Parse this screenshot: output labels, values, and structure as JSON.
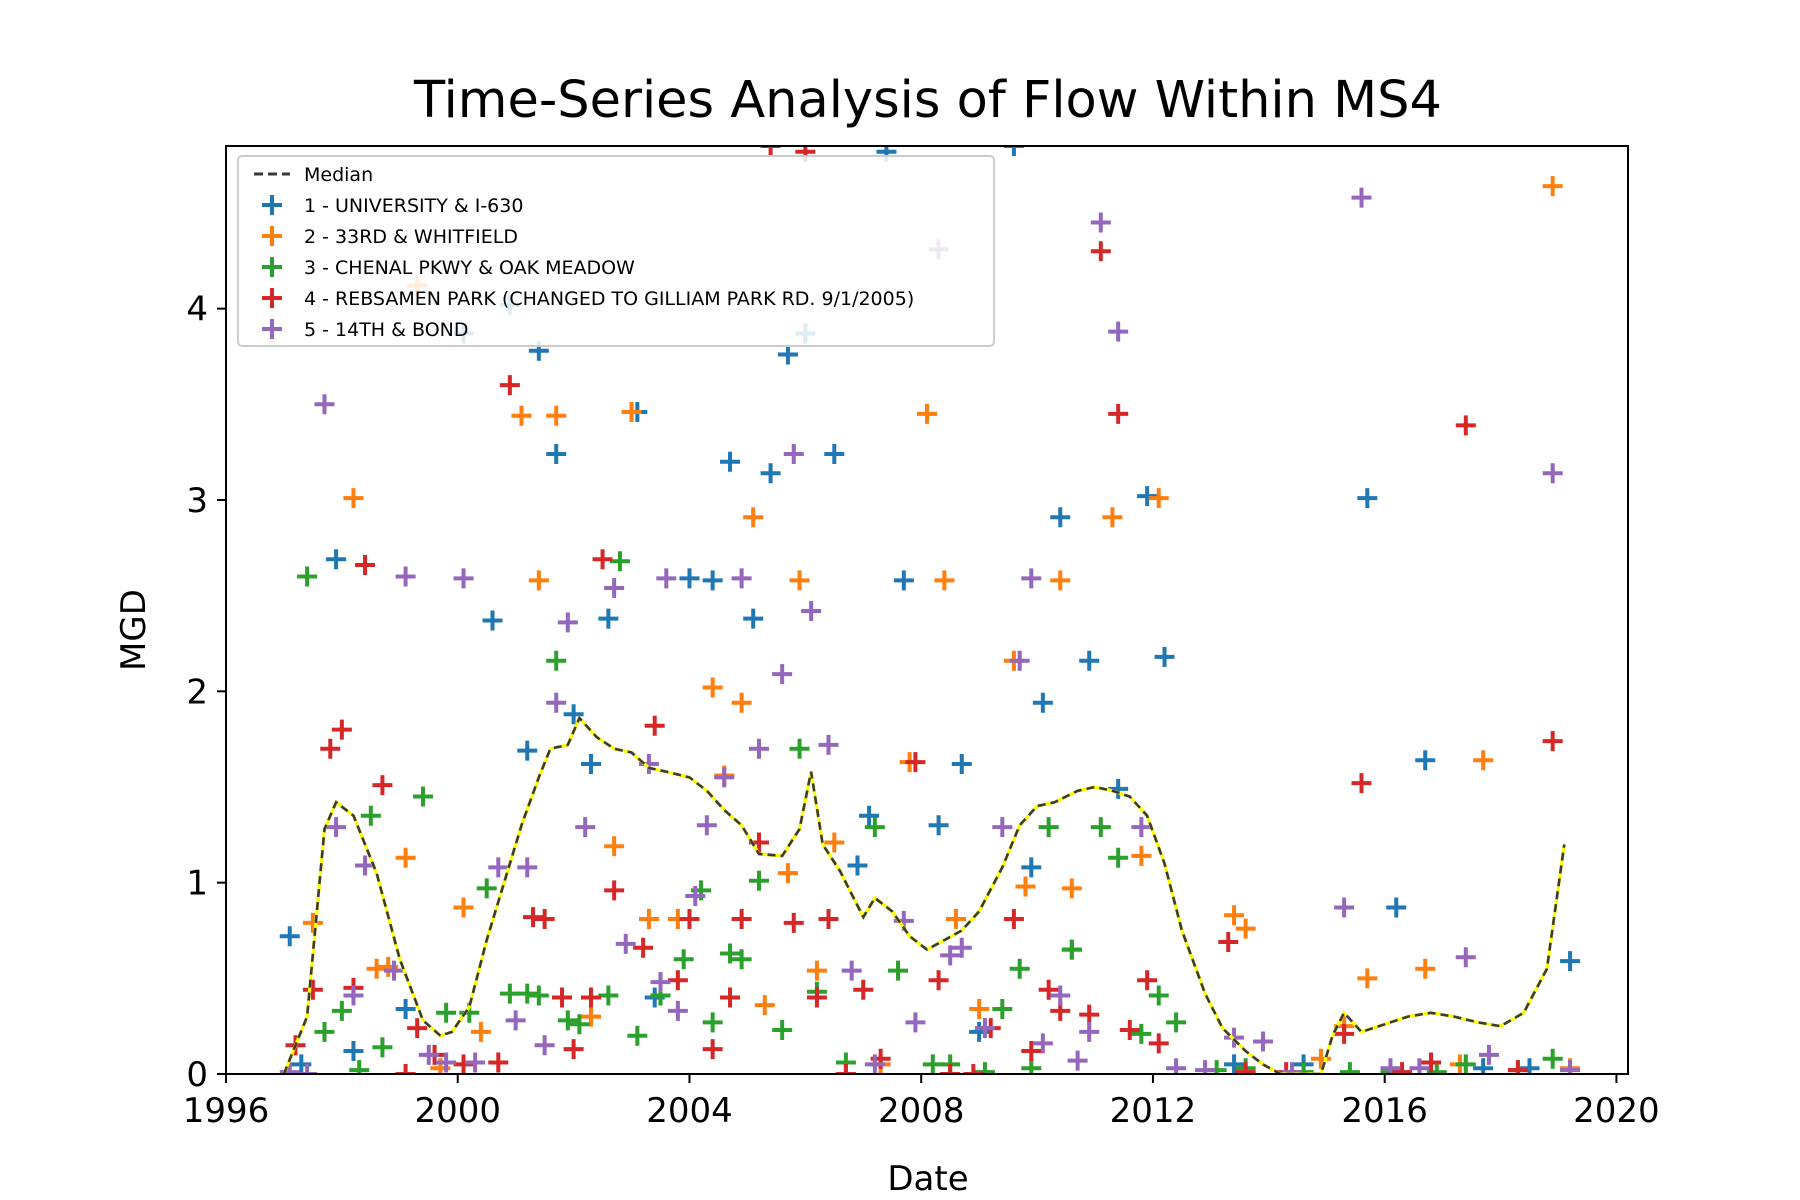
{
  "chart_data": {
    "type": "scatter",
    "title": "Time-Series Analysis of Flow Within MS4",
    "xlabel": "Date",
    "ylabel": "MGD",
    "xlim": [
      1996,
      2020.2
    ],
    "ylim": [
      0,
      4.85
    ],
    "xticks": [
      1996,
      2000,
      2004,
      2008,
      2012,
      2016,
      2020
    ],
    "yticks": [
      0,
      1,
      2,
      3,
      4
    ],
    "grid": false,
    "legend": "top-left",
    "median": {
      "name": "Median",
      "colors": [
        "#3a3a3a",
        "#ffff00"
      ],
      "x": [
        1997.0,
        1997.4,
        1997.7,
        1997.9,
        1998.2,
        1998.6,
        1999.0,
        1999.4,
        1999.7,
        1999.9,
        2000.2,
        2000.5,
        2000.8,
        2001.1,
        2001.4,
        2001.6,
        2001.9,
        2002.1,
        2002.4,
        2002.7,
        2003.0,
        2003.3,
        2003.6,
        2004.0,
        2004.3,
        2004.6,
        2004.9,
        2005.2,
        2005.6,
        2005.9,
        2006.1,
        2006.3,
        2006.6,
        2007.0,
        2007.2,
        2007.5,
        2007.8,
        2008.1,
        2008.4,
        2008.7,
        2009.0,
        2009.4,
        2009.7,
        2010.0,
        2010.3,
        2010.7,
        2011.0,
        2011.3,
        2011.6,
        2011.9,
        2012.2,
        2012.5,
        2012.9,
        2013.2,
        2013.6,
        2013.9,
        2014.2,
        2014.6,
        2014.9,
        2015.1,
        2015.3,
        2015.6,
        2016.0,
        2016.4,
        2016.8,
        2017.2,
        2017.6,
        2018.0,
        2018.4,
        2018.8,
        2019.1
      ],
      "y": [
        0,
        0.3,
        1.28,
        1.42,
        1.35,
        1.05,
        0.6,
        0.28,
        0.2,
        0.22,
        0.35,
        0.7,
        1.0,
        1.3,
        1.55,
        1.7,
        1.72,
        1.86,
        1.76,
        1.7,
        1.68,
        1.6,
        1.58,
        1.55,
        1.48,
        1.38,
        1.3,
        1.15,
        1.14,
        1.28,
        1.58,
        1.2,
        1.06,
        0.82,
        0.92,
        0.85,
        0.72,
        0.65,
        0.7,
        0.75,
        0.85,
        1.08,
        1.3,
        1.4,
        1.42,
        1.48,
        1.5,
        1.48,
        1.45,
        1.35,
        1.1,
        0.75,
        0.42,
        0.24,
        0.12,
        0.05,
        0,
        0,
        0,
        0.2,
        0.32,
        0.22,
        0.26,
        0.3,
        0.32,
        0.3,
        0.27,
        0.25,
        0.32,
        0.55,
        1.2
      ]
    },
    "series": [
      {
        "name": "1 - UNIVERSITY & I-630",
        "color": "#1f77b4",
        "x": [
          1997.1,
          1997.3,
          1997.9,
          1998.2,
          1999.1,
          2000.1,
          2000.6,
          2000.9,
          2001.2,
          2001.4,
          2001.7,
          2002.0,
          2002.3,
          2002.6,
          2003.1,
          2003.4,
          2004.0,
          2004.4,
          2004.7,
          2005.1,
          2005.4,
          2005.7,
          2006.0,
          2006.5,
          2006.9,
          2007.1,
          2007.4,
          2007.7,
          2008.3,
          2008.7,
          2009.0,
          2009.6,
          2009.9,
          2010.1,
          2010.4,
          2010.6,
          2010.9,
          2011.4,
          2011.9,
          2012.2,
          2013.4,
          2014.6,
          2015.7,
          2016.2,
          2016.7,
          2017.7,
          2018.5,
          2019.2
        ],
        "y": [
          0.72,
          0.05,
          2.69,
          0.12,
          0.34,
          3.87,
          2.37,
          4.02,
          1.69,
          3.78,
          3.24,
          1.88,
          1.62,
          2.38,
          3.46,
          0.4,
          2.59,
          2.58,
          3.2,
          2.38,
          3.14,
          3.76,
          3.87,
          3.24,
          1.09,
          1.35,
          4.82,
          2.58,
          1.3,
          1.62,
          0.22,
          4.85,
          1.08,
          1.94,
          2.91,
          0.65,
          2.16,
          1.49,
          3.02,
          2.18,
          0.05,
          0.05,
          3.01,
          0.87,
          1.64,
          0.03,
          0.03,
          0.59
        ]
      },
      {
        "name": "2 - 33RD & WHITFIELD",
        "color": "#ff7f0e",
        "x": [
          1997.5,
          1998.2,
          1998.6,
          1998.8,
          1999.1,
          1999.3,
          1999.7,
          2000.1,
          2000.4,
          2001.1,
          2001.4,
          2001.7,
          2002.3,
          2002.7,
          2003.0,
          2003.3,
          2003.8,
          2004.4,
          2004.6,
          2004.9,
          2005.1,
          2005.3,
          2005.7,
          2005.9,
          2006.2,
          2006.5,
          2007.3,
          2007.8,
          2008.1,
          2008.4,
          2008.6,
          2009.0,
          2009.6,
          2009.8,
          2010.4,
          2010.6,
          2011.3,
          2011.8,
          2012.1,
          2013.4,
          2013.6,
          2014.9,
          2015.3,
          2015.7,
          2016.7,
          2017.3,
          2017.7,
          2018.9,
          2019.2
        ],
        "y": [
          0.79,
          3.01,
          0.55,
          0.56,
          1.13,
          4.12,
          0.03,
          0.87,
          0.22,
          3.44,
          2.58,
          3.44,
          0.3,
          1.19,
          3.46,
          0.81,
          0.81,
          2.02,
          1.56,
          1.94,
          2.91,
          0.36,
          1.05,
          2.58,
          0.54,
          1.21,
          0.05,
          1.63,
          3.45,
          2.58,
          0.81,
          0.34,
          2.16,
          0.98,
          2.58,
          0.97,
          2.91,
          1.14,
          3.01,
          0.83,
          0.76,
          0.08,
          0.25,
          0.5,
          0.55,
          0.05,
          1.64,
          4.64,
          0.03
        ]
      },
      {
        "name": "3 - CHENAL PKWY & OAK MEADOW",
        "color": "#2ca02c",
        "x": [
          1997.4,
          1997.7,
          1998.0,
          1998.3,
          1998.5,
          1998.7,
          1999.4,
          1999.8,
          2000.2,
          2000.5,
          2000.9,
          2001.2,
          2001.4,
          2001.7,
          2001.9,
          2002.1,
          2002.6,
          2002.8,
          2003.1,
          2003.5,
          2003.9,
          2004.2,
          2004.4,
          2004.7,
          2004.9,
          2005.2,
          2005.6,
          2005.9,
          2006.2,
          2006.7,
          2007.2,
          2007.6,
          2008.2,
          2008.5,
          2009.1,
          2009.4,
          2009.7,
          2009.9,
          2010.2,
          2010.6,
          2011.1,
          2011.4,
          2011.8,
          2012.1,
          2012.4,
          2013.1,
          2013.6,
          2014.6,
          2015.4,
          2016.1,
          2016.9,
          2017.4,
          2018.3,
          2018.9
        ],
        "y": [
          2.6,
          0.22,
          0.33,
          0.02,
          1.35,
          0.14,
          1.45,
          0.32,
          0.32,
          0.97,
          0.42,
          0.42,
          0.41,
          2.16,
          0.28,
          0.26,
          0.41,
          2.68,
          0.2,
          0.41,
          0.6,
          0.96,
          0.27,
          0.63,
          0.6,
          1.01,
          0.23,
          1.7,
          0.43,
          0.06,
          1.29,
          0.54,
          0.05,
          0.05,
          0.01,
          0.34,
          0.55,
          0.03,
          1.29,
          0.65,
          1.29,
          1.13,
          0.21,
          0.41,
          0.27,
          0.02,
          0.03,
          0.01,
          0.01,
          0.01,
          0.01,
          0.05,
          0.02,
          0.08
        ]
      },
      {
        "name": "4 - REBSAMEN PARK (CHANGED TO GILLIAM PARK RD. 9/1/2005)",
        "color": "#d62728",
        "x": [
          1997.2,
          1997.5,
          1997.8,
          1998.0,
          1998.2,
          1998.4,
          1998.7,
          1999.1,
          1999.3,
          1999.6,
          2000.1,
          2000.7,
          2000.9,
          2001.3,
          2001.5,
          2001.8,
          2002.0,
          2002.3,
          2002.5,
          2002.7,
          2003.2,
          2003.4,
          2003.8,
          2004.0,
          2004.4,
          2004.7,
          2004.9,
          2005.2,
          2005.4,
          2005.8,
          2006.0,
          2006.2,
          2006.4,
          2006.7,
          2007.0,
          2007.3,
          2007.9,
          2008.3,
          2008.5,
          2008.9,
          2009.2,
          2009.6,
          2009.9,
          2010.2,
          2010.4,
          2010.9,
          2011.1,
          2011.4,
          2011.6,
          2011.9,
          2012.1,
          2013.3,
          2013.6,
          2014.3,
          2015.3,
          2015.6,
          2016.3,
          2016.8,
          2017.4,
          2018.3,
          2018.9
        ],
        "y": [
          0.15,
          0.44,
          1.7,
          1.8,
          0.45,
          2.66,
          1.51,
          0.0,
          0.24,
          0.1,
          0.05,
          0.06,
          3.6,
          0.82,
          0.81,
          0.4,
          0.13,
          0.4,
          2.69,
          0.96,
          0.66,
          1.82,
          0.49,
          0.81,
          0.13,
          0.4,
          0.81,
          1.21,
          4.85,
          0.79,
          4.82,
          0.4,
          0.81,
          0.0,
          0.44,
          0.08,
          1.63,
          0.49,
          0.0,
          0.0,
          0.24,
          0.81,
          0.12,
          0.44,
          0.33,
          0.31,
          4.3,
          3.45,
          0.23,
          0.49,
          0.16,
          0.69,
          0.01,
          0.01,
          0.21,
          1.52,
          0.01,
          0.06,
          3.39,
          0.02,
          1.74
        ]
      },
      {
        "name": "5 - 14TH & BOND",
        "color": "#9467bd",
        "x": [
          1997.1,
          1997.4,
          1997.7,
          1997.9,
          1998.2,
          1998.4,
          1998.9,
          1999.1,
          1999.5,
          1999.8,
          2000.1,
          2000.3,
          2000.7,
          2001.0,
          2001.2,
          2001.5,
          2001.7,
          2001.9,
          2002.2,
          2002.7,
          2002.9,
          2003.3,
          2003.5,
          2003.6,
          2003.8,
          2004.1,
          2004.3,
          2004.6,
          2004.9,
          2005.2,
          2005.6,
          2005.8,
          2006.1,
          2006.4,
          2006.8,
          2007.2,
          2007.7,
          2007.9,
          2008.3,
          2008.5,
          2008.7,
          2009.1,
          2009.4,
          2009.7,
          2009.9,
          2010.1,
          2010.4,
          2010.7,
          2010.9,
          2011.1,
          2011.4,
          2011.8,
          2012.4,
          2012.9,
          2013.4,
          2013.9,
          2014.4,
          2015.3,
          2015.6,
          2016.1,
          2016.6,
          2017.4,
          2017.8,
          2018.9,
          2019.2
        ],
        "y": [
          0.01,
          0.0,
          3.5,
          1.29,
          0.41,
          1.09,
          0.54,
          2.6,
          0.1,
          0.06,
          2.59,
          0.06,
          1.08,
          0.28,
          1.08,
          0.15,
          1.94,
          2.36,
          1.29,
          2.54,
          0.68,
          1.62,
          0.48,
          2.59,
          0.33,
          0.93,
          1.3,
          1.55,
          2.59,
          1.7,
          2.09,
          3.24,
          2.42,
          1.72,
          0.54,
          0.05,
          0.8,
          0.27,
          4.31,
          0.62,
          0.66,
          0.24,
          1.29,
          2.16,
          2.59,
          0.16,
          0.41,
          0.07,
          0.22,
          4.45,
          3.88,
          1.29,
          0.03,
          0.02,
          0.19,
          0.17,
          0.01,
          0.87,
          4.58,
          0.03,
          0.03,
          0.61,
          0.1,
          3.14,
          0.02
        ]
      }
    ]
  }
}
